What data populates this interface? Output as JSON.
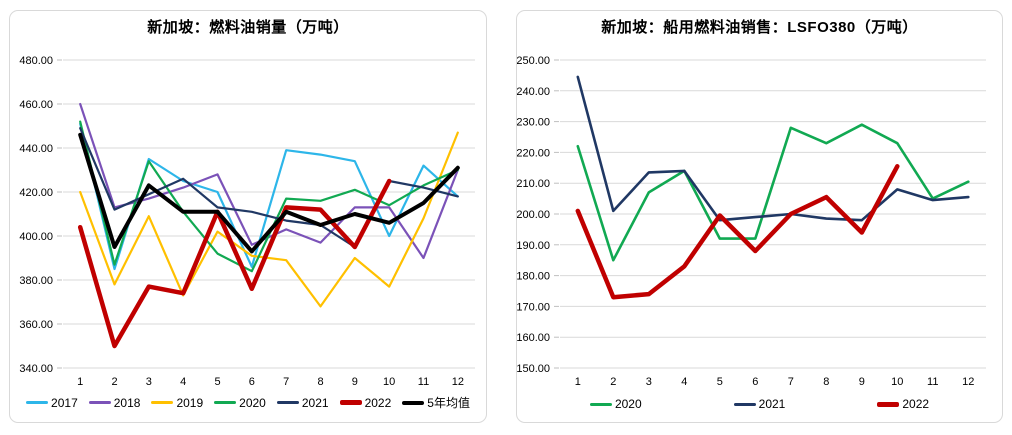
{
  "chart_data": [
    {
      "type": "line",
      "title": "新加坡：燃料油销量（万吨）",
      "xlabel": "",
      "ylabel": "",
      "x_labels": [
        "1",
        "2",
        "3",
        "4",
        "5",
        "6",
        "7",
        "8",
        "9",
        "10",
        "11",
        "12"
      ],
      "ylim": [
        340,
        480
      ],
      "ytick_step": 20,
      "ytick_labels": [
        "340.00",
        "360.00",
        "380.00",
        "400.00",
        "420.00",
        "440.00",
        "460.00",
        "480.00"
      ],
      "grid": true,
      "legend_position": "bottom",
      "series": [
        {
          "name": "2017",
          "color": "#2db6e9",
          "width": 2.2,
          "values": [
            451,
            385,
            435,
            425,
            420,
            386,
            439,
            437,
            434,
            400,
            432,
            418
          ]
        },
        {
          "name": "2018",
          "color": "#7b52b8",
          "width": 2.2,
          "values": [
            460,
            413,
            417,
            422,
            428,
            396,
            403,
            397,
            413,
            413,
            390,
            430
          ]
        },
        {
          "name": "2019",
          "color": "#ffc000",
          "width": 2.2,
          "values": [
            420,
            378,
            409,
            373,
            402,
            391,
            389,
            368,
            390,
            377,
            408,
            447
          ]
        },
        {
          "name": "2020",
          "color": "#11a952",
          "width": 2.2,
          "values": [
            452,
            387,
            434,
            411,
            392,
            384,
            417,
            416,
            421,
            414,
            423,
            430
          ]
        },
        {
          "name": "2021",
          "color": "#203864",
          "width": 2.2,
          "values": [
            449,
            412,
            419,
            426,
            413,
            411,
            407,
            405,
            395,
            425,
            422,
            418
          ]
        },
        {
          "name": "2022",
          "color": "#c00000",
          "width": 4.5,
          "values": [
            404,
            350,
            377,
            374,
            411,
            376,
            413,
            412,
            395,
            425
          ]
        },
        {
          "name": "5年均值",
          "color": "#000000",
          "width": 4,
          "values": [
            446,
            395,
            423,
            411,
            411,
            393,
            411,
            405,
            410,
            406,
            415,
            431
          ]
        }
      ]
    },
    {
      "type": "line",
      "title": "新加坡：船用燃料油销售：LSFO380（万吨）",
      "xlabel": "",
      "ylabel": "",
      "x_labels": [
        "1",
        "2",
        "3",
        "4",
        "5",
        "6",
        "7",
        "8",
        "9",
        "10",
        "11",
        "12"
      ],
      "ylim": [
        150,
        250
      ],
      "ytick_step": 10,
      "ytick_labels": [
        "150.00",
        "160.00",
        "170.00",
        "180.00",
        "190.00",
        "200.00",
        "210.00",
        "220.00",
        "230.00",
        "240.00",
        "250.00"
      ],
      "grid": true,
      "legend_position": "bottom",
      "series": [
        {
          "name": "2020",
          "color": "#11a952",
          "width": 2.6,
          "values": [
            222,
            185,
            207,
            214,
            192,
            192,
            228,
            223,
            229,
            223,
            205,
            210.5
          ]
        },
        {
          "name": "2021",
          "color": "#203864",
          "width": 2.6,
          "values": [
            244.5,
            201,
            213.5,
            214,
            198,
            199,
            200,
            198.5,
            198,
            208,
            204.5,
            205.5
          ]
        },
        {
          "name": "2022",
          "color": "#c00000",
          "width": 4.5,
          "values": [
            201,
            173,
            174,
            183,
            199.5,
            188,
            200,
            205.5,
            194,
            215.5
          ]
        }
      ]
    }
  ]
}
